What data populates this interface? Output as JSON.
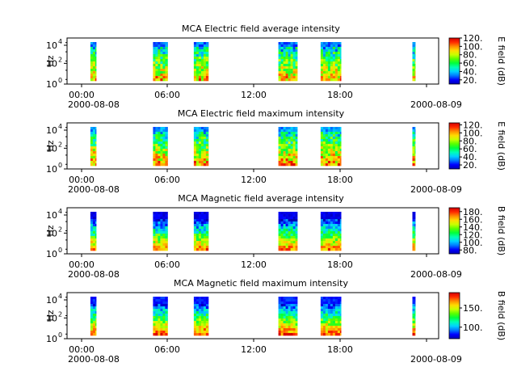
{
  "colors": {
    "background": "#ffffff",
    "axis": "#000000",
    "colormap": [
      "#0000b4",
      "#0000ff",
      "#0078ff",
      "#00d2ff",
      "#00ffb4",
      "#00ff3c",
      "#5aff00",
      "#c8ff00",
      "#ffdc00",
      "#ff8c00",
      "#ff2800",
      "#d20000"
    ]
  },
  "chart_data": [
    {
      "type": "heatmap",
      "title": "MCA  Electric field average intensity",
      "ylabel": "Hz",
      "xlabel": "",
      "x_ticks": [
        "00:00",
        "06:00",
        "12:00",
        "18:00",
        ""
      ],
      "x_date_labels": [
        "2000-08-08",
        "2000-08-09"
      ],
      "y_ticks": [
        "10^0",
        "10^2",
        "10^4"
      ],
      "y_scale": "log",
      "y_range_hz": [
        1,
        40000
      ],
      "x_range_hours": [
        -1.0,
        24.5
      ],
      "colorbar": {
        "label": "E field (dB)",
        "range": [
          10,
          120
        ],
        "ticks": [
          "20.",
          "40.",
          "60.",
          "80.",
          "100.",
          "120."
        ]
      },
      "intervals_hours": [
        [
          0.6,
          1.0
        ],
        [
          4.9,
          5.9
        ],
        [
          7.7,
          8.7
        ],
        [
          13.5,
          14.8
        ],
        [
          16.4,
          17.8
        ],
        [
          22.7,
          22.9
        ]
      ]
    },
    {
      "type": "heatmap",
      "title": "MCA  Electric field maximum intensity",
      "ylabel": "Hz",
      "xlabel": "",
      "x_ticks": [
        "00:00",
        "06:00",
        "12:00",
        "18:00",
        ""
      ],
      "x_date_labels": [
        "2000-08-08",
        "2000-08-09"
      ],
      "y_ticks": [
        "10^0",
        "10^2",
        "10^4"
      ],
      "y_scale": "log",
      "y_range_hz": [
        1,
        40000
      ],
      "x_range_hours": [
        -1.0,
        24.5
      ],
      "colorbar": {
        "label": "E field (dB)",
        "range": [
          10,
          125
        ],
        "ticks": [
          "20.",
          "40.",
          "60.",
          "80.",
          "100.",
          "120."
        ]
      },
      "intervals_hours": [
        [
          0.6,
          1.0
        ],
        [
          4.9,
          5.9
        ],
        [
          7.7,
          8.7
        ],
        [
          13.5,
          14.8
        ],
        [
          16.4,
          17.8
        ],
        [
          22.7,
          22.9
        ]
      ]
    },
    {
      "type": "heatmap",
      "title": "MCA  Magnetic field average intensity",
      "ylabel": "Hz",
      "xlabel": "",
      "x_ticks": [
        "00:00",
        "06:00",
        "12:00",
        "18:00",
        ""
      ],
      "x_date_labels": [
        "2000-08-08",
        "2000-08-09"
      ],
      "y_ticks": [
        "10^0",
        "10^2",
        "10^4"
      ],
      "y_scale": "log",
      "y_range_hz": [
        1,
        40000
      ],
      "x_range_hours": [
        -1.0,
        24.5
      ],
      "colorbar": {
        "label": "B field (dB)",
        "range": [
          70,
          190
        ],
        "ticks": [
          "80.",
          "100.",
          "120.",
          "140.",
          "160.",
          "180."
        ]
      },
      "intervals_hours": [
        [
          0.6,
          1.0
        ],
        [
          4.9,
          5.9
        ],
        [
          7.7,
          8.7
        ],
        [
          13.5,
          14.8
        ],
        [
          16.4,
          17.8
        ],
        [
          22.7,
          22.9
        ]
      ]
    },
    {
      "type": "heatmap",
      "title": "MCA  Magnetic field maximum intensity",
      "ylabel": "Hz",
      "xlabel": "",
      "x_ticks": [
        "00:00",
        "06:00",
        "12:00",
        "18:00",
        ""
      ],
      "x_date_labels": [
        "2000-08-08",
        "2000-08-09"
      ],
      "y_ticks": [
        "10^0",
        "10^2",
        "10^4"
      ],
      "y_scale": "log",
      "y_range_hz": [
        1,
        40000
      ],
      "x_range_hours": [
        -1.0,
        24.5
      ],
      "colorbar": {
        "label": "B field (dB)",
        "range": [
          70,
          190
        ],
        "ticks": [
          "100.",
          "150."
        ]
      },
      "intervals_hours": [
        [
          0.6,
          1.0
        ],
        [
          4.9,
          5.9
        ],
        [
          7.7,
          8.7
        ],
        [
          13.5,
          14.8
        ],
        [
          16.4,
          17.8
        ],
        [
          22.7,
          22.9
        ]
      ]
    }
  ]
}
